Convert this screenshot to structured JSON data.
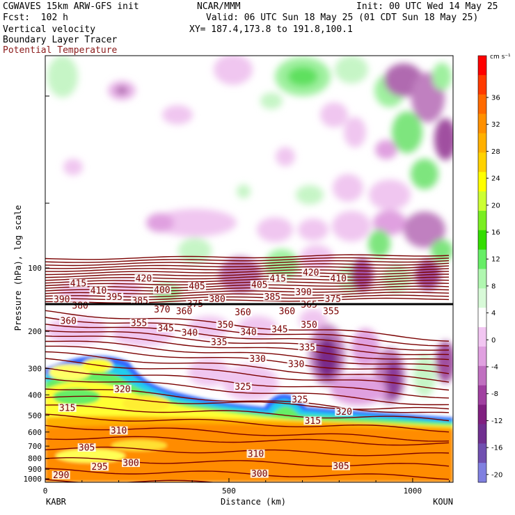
{
  "header": {
    "model": "CGWAVES 15km ARW-GFS init",
    "fcst": "Fcst:  102 h",
    "field1": "Vertical velocity",
    "field2": "Boundary Layer Tracer",
    "field3": "Potential Temperature",
    "org": "NCAR/MMM",
    "init": "Init: 00 UTC Wed 14 May 25",
    "valid": "Valid: 06 UTC Sun 18 May 25 (01 CDT Sun 18 May 25)",
    "xy": "XY= 187.4,173.8 to 191.8,100.1"
  },
  "colors": {
    "theta": "#7a0000",
    "field3_label": "#8b1a1a"
  },
  "chart_data": {
    "type": "heatmap",
    "xlabel": "Distance (km)",
    "ylabel": "Pressure (hPa), log scale",
    "x_ticks": [
      0,
      500,
      1000
    ],
    "xlim": [
      0,
      1110
    ],
    "y_ticks": [
      100,
      200,
      300,
      400,
      500,
      600,
      700,
      800,
      900,
      1000
    ],
    "y_scale": "log",
    "y_top_label": "",
    "left_station": "KABR",
    "right_station": "KOUN",
    "colorbar": {
      "unit": "cm s⁻¹",
      "tick_labels": [
        "36",
        "32",
        "28",
        "24",
        "20",
        "16",
        "12",
        "8",
        "4",
        "0",
        "-4",
        "-8",
        "-12",
        "-16",
        "-20"
      ],
      "colors": [
        "#ff0000",
        "#ff3a00",
        "#ff6a00",
        "#ff9000",
        "#ffb000",
        "#ffd200",
        "#ffff00",
        "#ccff33",
        "#7aee22",
        "#33dd00",
        "#66ee66",
        "#b0f7b0",
        "#d8fad8",
        "#ffffff",
        "#f2c6f2",
        "#e0a0e0",
        "#c070c0",
        "#a040a0",
        "#802080",
        "#703090",
        "#7050b0",
        "#8080e0"
      ]
    },
    "theta_labels": [
      {
        "v": "415",
        "x": 90,
        "p": 118
      },
      {
        "v": "410",
        "x": 145,
        "p": 128
      },
      {
        "v": "395",
        "x": 188,
        "p": 137
      },
      {
        "v": "420",
        "x": 268,
        "p": 112
      },
      {
        "v": "385",
        "x": 258,
        "p": 143
      },
      {
        "v": "400",
        "x": 318,
        "p": 127
      },
      {
        "v": "405",
        "x": 413,
        "p": 122
      },
      {
        "v": "375",
        "x": 408,
        "p": 148
      },
      {
        "v": "380",
        "x": 468,
        "p": 140
      },
      {
        "v": "405",
        "x": 583,
        "p": 120
      },
      {
        "v": "415",
        "x": 633,
        "p": 112
      },
      {
        "v": "385",
        "x": 618,
        "p": 137
      },
      {
        "v": "390",
        "x": 703,
        "p": 130
      },
      {
        "v": "420",
        "x": 723,
        "p": 105
      },
      {
        "v": "410",
        "x": 798,
        "p": 112
      },
      {
        "v": "375",
        "x": 783,
        "p": 140
      },
      {
        "v": "365",
        "x": 718,
        "p": 149
      },
      {
        "v": "355",
        "x": 778,
        "p": 160
      },
      {
        "v": "390",
        "x": 45,
        "p": 141
      },
      {
        "v": "380",
        "x": 95,
        "p": 151
      },
      {
        "v": "370",
        "x": 318,
        "p": 157
      },
      {
        "v": "360",
        "x": 378,
        "p": 160
      },
      {
        "v": "360",
        "x": 538,
        "p": 162
      },
      {
        "v": "360",
        "x": 658,
        "p": 160
      },
      {
        "v": "360",
        "x": 63,
        "p": 178
      },
      {
        "v": "355",
        "x": 255,
        "p": 182
      },
      {
        "v": "350",
        "x": 490,
        "p": 186
      },
      {
        "v": "350",
        "x": 718,
        "p": 186
      },
      {
        "v": "345",
        "x": 328,
        "p": 193
      },
      {
        "v": "345",
        "x": 638,
        "p": 195
      },
      {
        "v": "340",
        "x": 393,
        "p": 203
      },
      {
        "v": "340",
        "x": 553,
        "p": 201
      },
      {
        "v": "335",
        "x": 473,
        "p": 225
      },
      {
        "v": "335",
        "x": 713,
        "p": 238
      },
      {
        "v": "330",
        "x": 578,
        "p": 270
      },
      {
        "v": "330",
        "x": 683,
        "p": 285
      },
      {
        "v": "325",
        "x": 538,
        "p": 365
      },
      {
        "v": "325",
        "x": 693,
        "p": 420
      },
      {
        "v": "320",
        "x": 210,
        "p": 375
      },
      {
        "v": "320",
        "x": 813,
        "p": 480
      },
      {
        "v": "315",
        "x": 728,
        "p": 530
      },
      {
        "v": "315",
        "x": 60,
        "p": 460
      },
      {
        "v": "310",
        "x": 200,
        "p": 590
      },
      {
        "v": "310",
        "x": 573,
        "p": 760
      },
      {
        "v": "305",
        "x": 113,
        "p": 710
      },
      {
        "v": "305",
        "x": 805,
        "p": 870
      },
      {
        "v": "300",
        "x": 233,
        "p": 840
      },
      {
        "v": "300",
        "x": 583,
        "p": 945
      },
      {
        "v": "295",
        "x": 148,
        "p": 875
      },
      {
        "v": "290",
        "x": 43,
        "p": 960
      }
    ]
  }
}
